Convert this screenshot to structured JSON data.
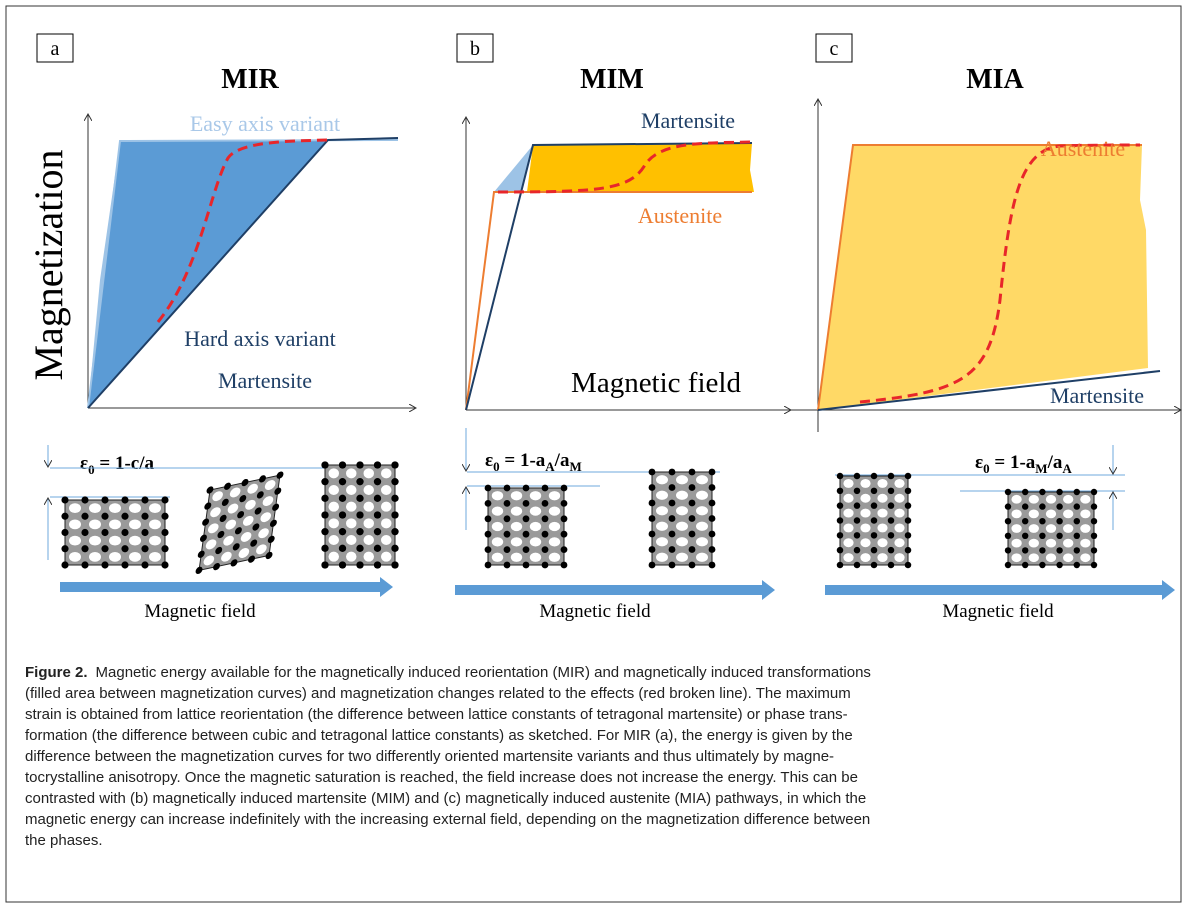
{
  "y_axis_label": "Magnetization",
  "panels": [
    {
      "label": "a",
      "title": "MIR",
      "curve_labels": [
        "Easy axis variant",
        "Hard axis variant",
        "Martensite"
      ],
      "strain": [
        "ε",
        "0",
        " = 1-c/a"
      ],
      "arrow_label": "Magnetic field"
    },
    {
      "label": "b",
      "title": "MIM",
      "curve_labels": [
        "Martensite",
        "Austenite"
      ],
      "x_axis_label": "Magnetic field",
      "strain": [
        "ε",
        "0",
        " = 1-a",
        "A",
        "/a",
        "M"
      ],
      "arrow_label": "Magnetic field"
    },
    {
      "label": "c",
      "title": "MIA",
      "curve_labels": [
        "Austenite",
        "Martensite"
      ],
      "strain": [
        "ε",
        "0",
        " = 1-a",
        "M",
        "/a",
        "A"
      ],
      "arrow_label": "Magnetic field"
    }
  ],
  "caption": {
    "label": "Figure 2.",
    "lines": [
      "Magnetic energy available for the magnetically induced reorientation (MIR) and magnetically induced transformations",
      "(filled area between magnetization curves) and magnetization changes related to the effects (red broken line). The maximum",
      "strain is obtained from lattice reorientation (the difference between lattice constants of tetragonal martensite) or phase trans-",
      "formation (the difference between cubic and  tetragonal lattice constants) as sketched. For MIR (a), the energy is given by the",
      "difference between the magnetization curves for two differently oriented martensite variants and thus ultimately by magne-",
      "tocrystalline anisotropy. Once the magnetic saturation is reached, the field increase does not increase the energy. This can be",
      "contrasted with (b) magnetically induced martensite (MIM) and (c) magnetically induced austenite (MIA) pathways, in which the",
      "magnetic energy can increase indefinitely with the increasing external field, depending on the magnetization difference between",
      "the phases."
    ]
  }
}
